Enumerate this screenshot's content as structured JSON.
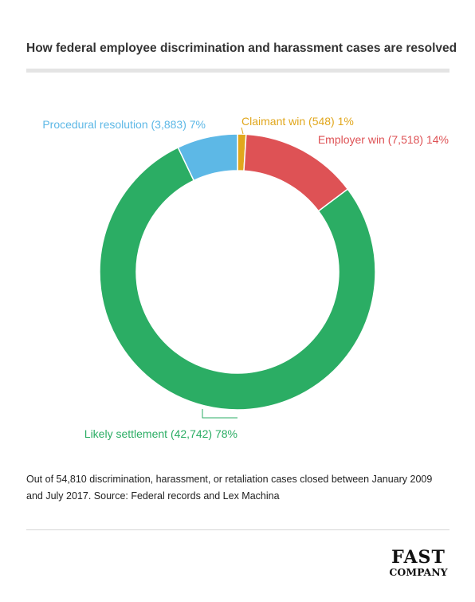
{
  "chart_data": {
    "type": "pie",
    "style": "donut",
    "title": "How federal employee discrimination and harassment cases are resolved",
    "slices": [
      {
        "category": "Claimant win",
        "value": 548,
        "percent": 1,
        "label": "Claimant win (548) 1%",
        "color": "#e1a71d"
      },
      {
        "category": "Employer win",
        "value": 7518,
        "percent": 14,
        "label": "Employer win (7,518) 14%",
        "color": "#de5255"
      },
      {
        "category": "Likely settlement",
        "value": 42742,
        "percent": 78,
        "label": "Likely settlement (42,742) 78%",
        "color": "#2bad64"
      },
      {
        "category": "Procedural resolution",
        "value": 3883,
        "percent": 7,
        "label": "Procedural resolution (3,883) 7%",
        "color": "#5db8e6"
      }
    ]
  },
  "note": "Out of 54,810 discrimination, harassment, or retaliation cases closed between January 2009 and July 2017. Source: Federal records and Lex Machina",
  "logo": {
    "line1": "FAST",
    "line2": "COMPANY"
  }
}
